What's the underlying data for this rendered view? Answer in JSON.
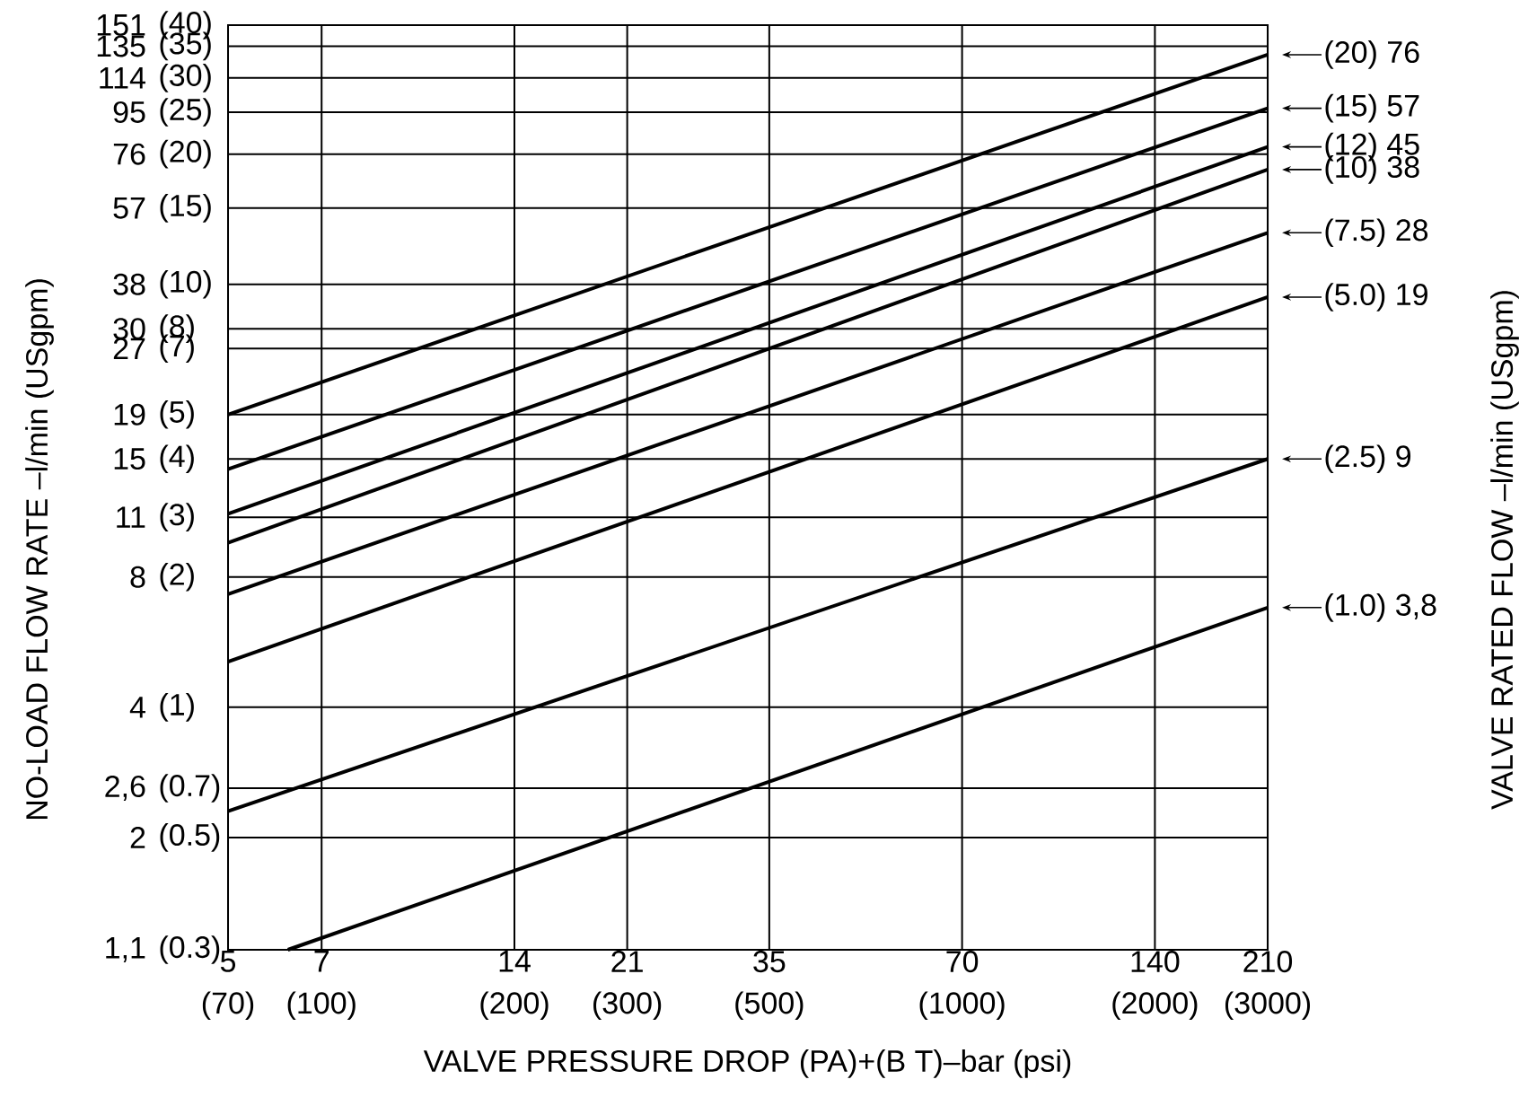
{
  "chart_data": {
    "type": "line",
    "xlabel": "VALVE PRESSURE DROP (PA)+(B T)–bar (psi)",
    "ylabel": "NO-LOAD FLOW RATE  –l/min (USgpm)",
    "legend_title": "VALVE RATED FLOW  –l/min (USgpm)",
    "legend": "right",
    "log": "xy",
    "grid": true,
    "line_style": "solid",
    "xlim": [
      5,
      210
    ],
    "ylim": [
      1.1,
      151
    ],
    "xticks": [
      5,
      7,
      14,
      21,
      35,
      70,
      140,
      210
    ],
    "annotations": [
      "(70)",
      "(100)",
      "(200)",
      "(300)",
      "(500)",
      "(1000)",
      "(2000)",
      "(3000)",
      "(0.3)",
      "(0.5)",
      "(0.7)",
      "(1)",
      "(2)",
      "(3)",
      "(4)",
      "(5)",
      "(7)",
      "(8)",
      "(10)",
      "(15)",
      "(20)",
      "(25)",
      "(30)",
      "(35)",
      "(40)"
    ],
    "yticks": [
      {
        "value": 1.1,
        "label": "1,1"
      },
      2,
      {
        "value": 2.6,
        "label": "2,6"
      },
      4,
      8,
      11,
      15,
      19,
      27,
      30,
      38,
      57,
      76,
      95,
      114,
      135,
      151
    ],
    "x": [
      5,
      210
    ],
    "series": [
      {
        "name": "(20) 76",
        "color": "#000000",
        "values": [
          19,
          129
        ]
      },
      {
        "name": "(15) 57",
        "color": "#000000",
        "values": [
          14.2,
          97
        ]
      },
      {
        "name": "(12) 45",
        "color": "#000000",
        "values": [
          11.2,
          79
        ]
      },
      {
        "name": "(10) 38",
        "color": "#000000",
        "values": [
          9.6,
          70
        ]
      },
      {
        "name": "(7.5) 28",
        "color": "#000000",
        "values": [
          7.3,
          50
        ]
      },
      {
        "name": "(5.0) 19",
        "color": "#000000",
        "values": [
          5.1,
          35.5
        ]
      },
      {
        "name": "(2.5) 9",
        "color": "#000000",
        "values": [
          2.3,
          15
        ]
      },
      {
        "name": "(1.0) 3,8",
        "color": "#000000",
        "x": [
          6.2,
          210
        ],
        "values": [
          1.1,
          6.8
        ]
      }
    ]
  }
}
